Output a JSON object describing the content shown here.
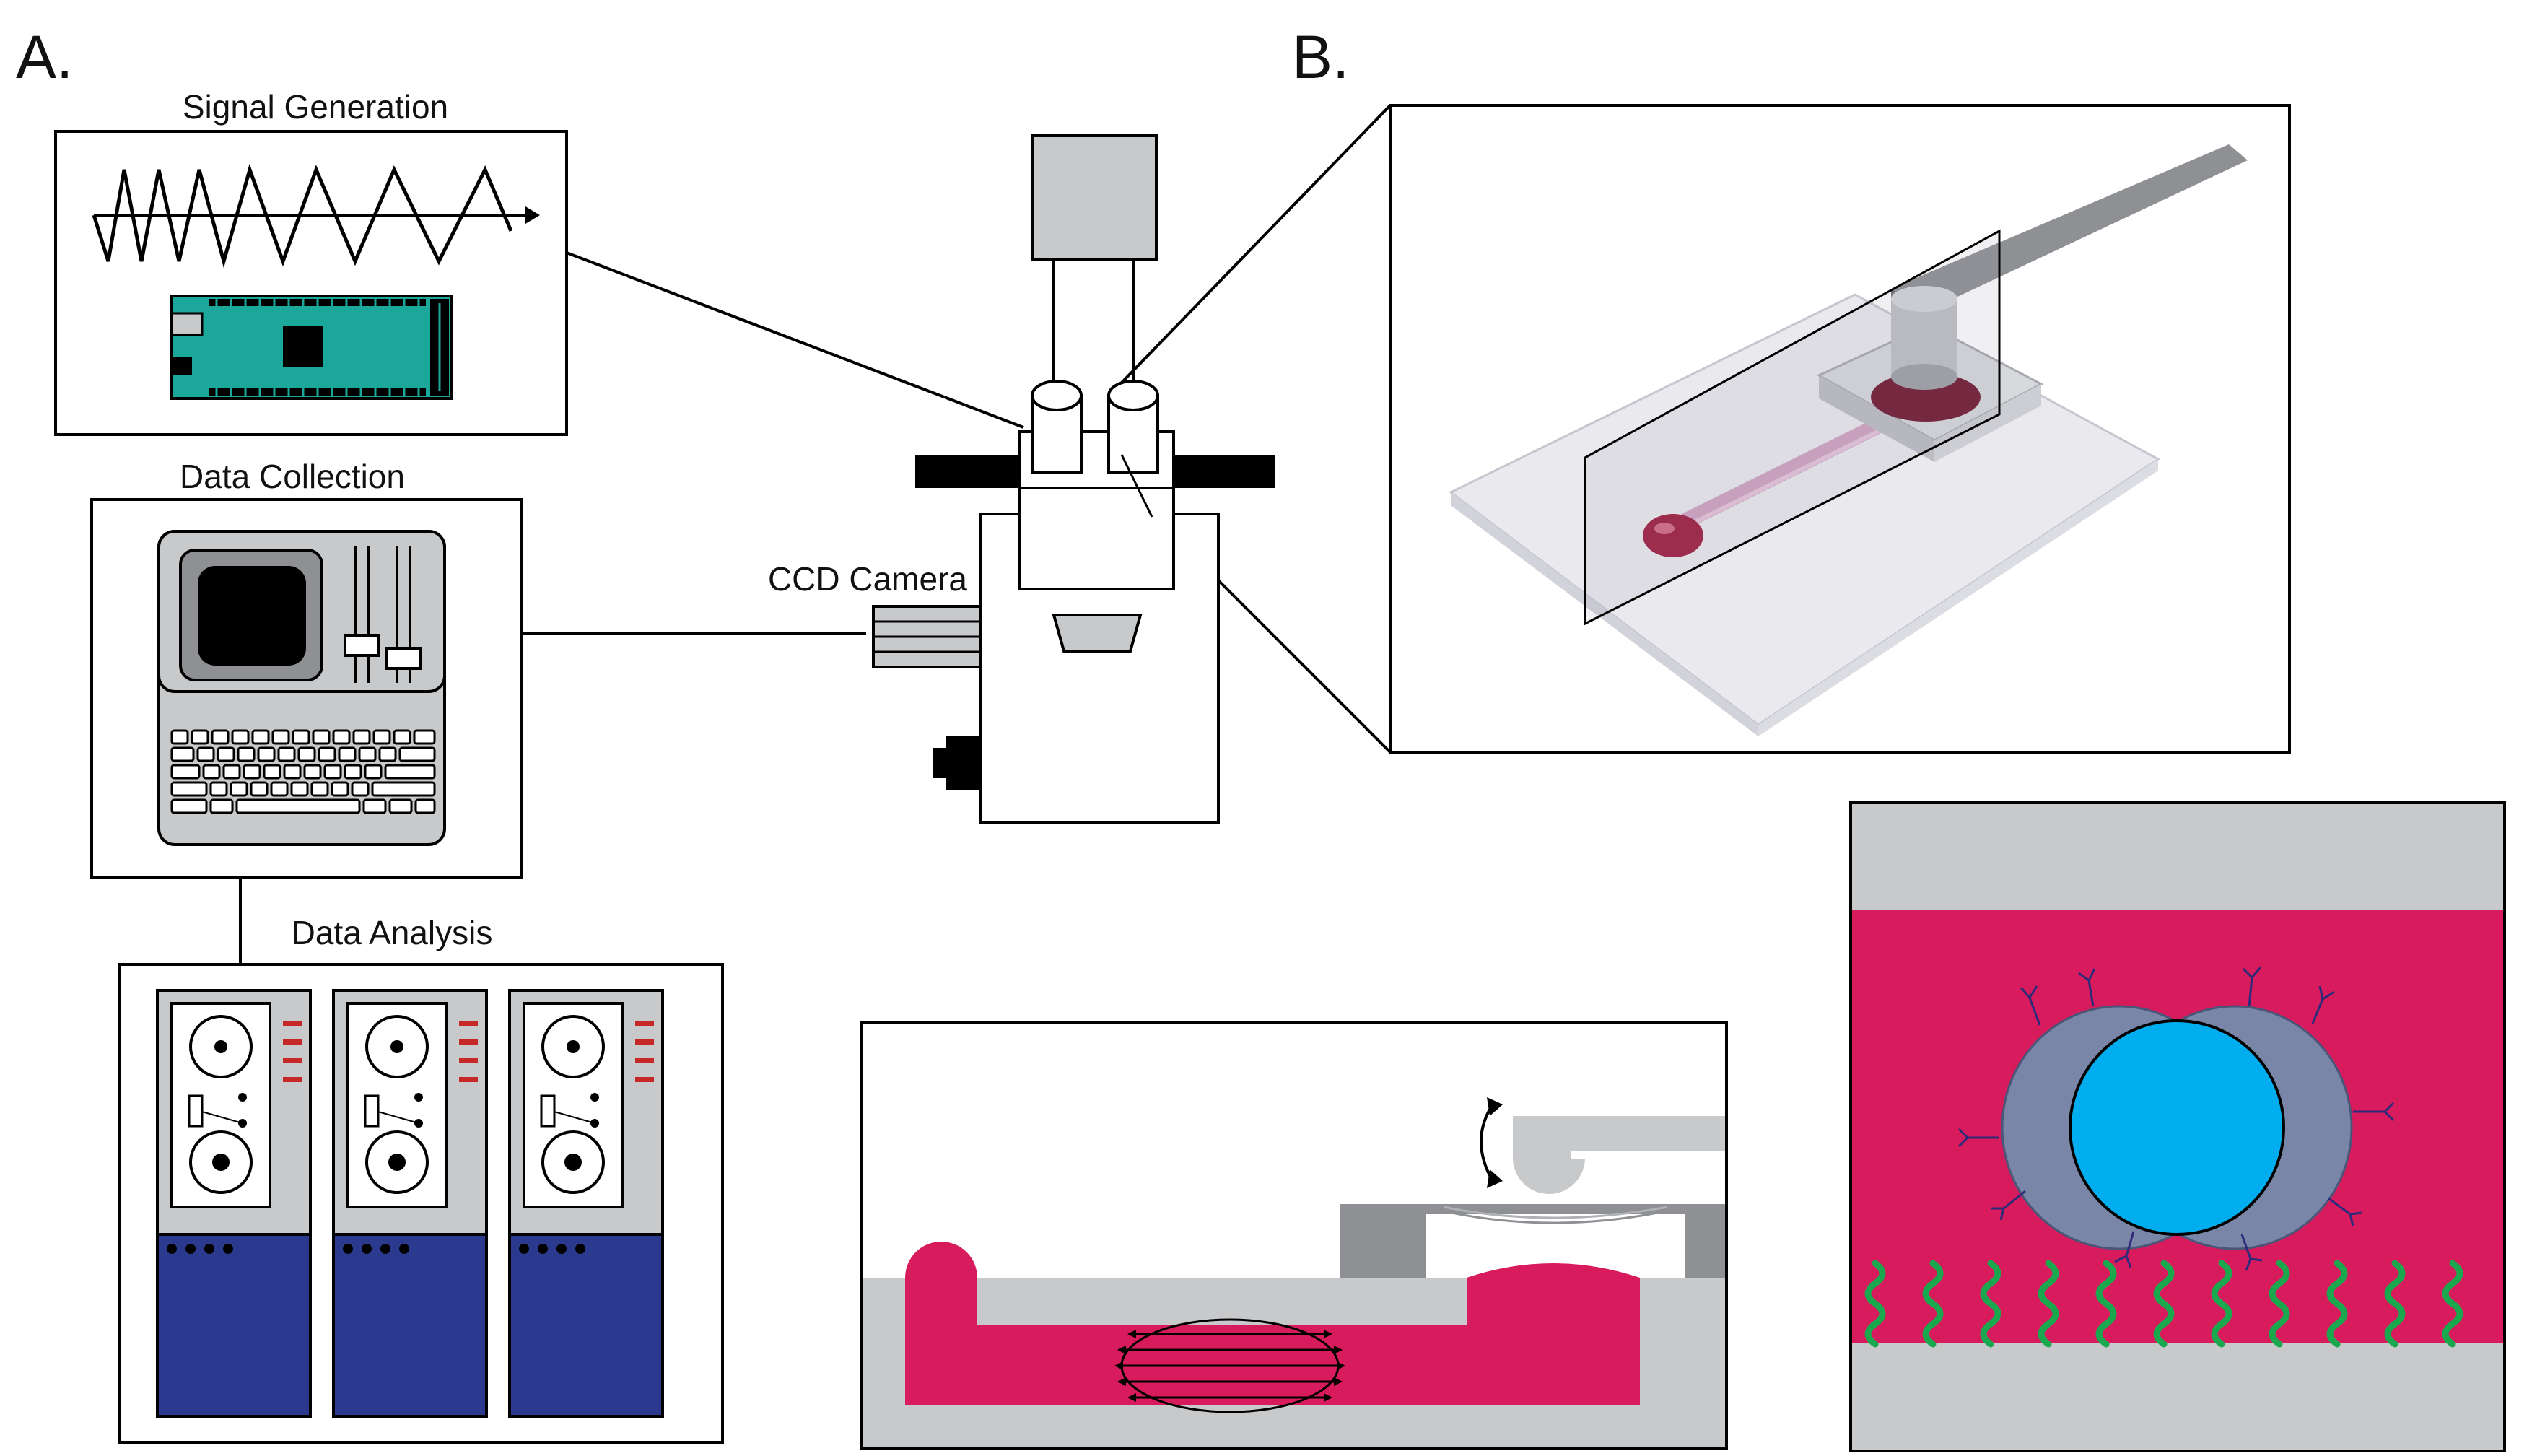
{
  "panels": {
    "a_label": "A.",
    "b_label": "B."
  },
  "boxes": {
    "signal_generation": "Signal Generation",
    "data_collection": "Data Collection",
    "data_analysis": "Data Analysis"
  },
  "microscope": {
    "ccd_label": "CCD Camera"
  },
  "colors": {
    "magenta": "#D81B5C",
    "gray": "#C8C9CB",
    "dark_gray": "#8E9094",
    "navy": "#2B3A8E",
    "cyan": "#00AEEF",
    "teal": "#1BA89A",
    "green": "#1AA84E",
    "blue_gray": "#7A86A8",
    "red_tick": "#C62828"
  }
}
